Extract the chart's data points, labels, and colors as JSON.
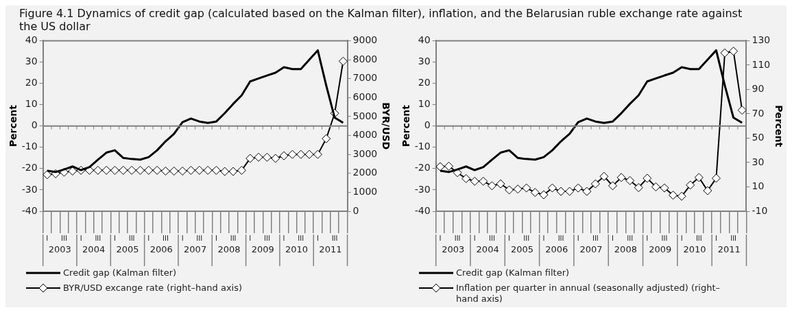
{
  "chart_data": [
    {
      "type": "line",
      "title": "Figure 4.1 Dynamics of credit gap (calculated based on the Kalman filter), inflation, and the Belarusian ruble exchange rate against the US dollar",
      "ylabel": "Percent",
      "y2label": "BYR/USD",
      "categories": [
        "I",
        null,
        "III",
        null,
        "I",
        null,
        "III",
        null,
        "I",
        null,
        "III",
        null,
        "I",
        null,
        "III",
        null,
        "I",
        null,
        "III",
        null,
        "I",
        null,
        "III",
        null,
        "I",
        null,
        "III",
        null,
        "I",
        null,
        "III",
        null,
        "I",
        null,
        "III",
        null
      ],
      "annotations": [
        "2003",
        "2004",
        "2005",
        "2006",
        "2007",
        "2008",
        "2009",
        "2010",
        "2011"
      ],
      "series": [
        {
          "name": "Credit gap (Kalman filter)",
          "color": "#000000",
          "marker": "none",
          "values": [
            -21,
            -21.6,
            -20.4,
            -19,
            -20.7,
            -19.3,
            -15.8,
            -12.5,
            -11.4,
            -15,
            -15.5,
            -15.8,
            -14.6,
            -11.4,
            -7.2,
            -3.7,
            1.8,
            3.5,
            2.1,
            1.4,
            2.1,
            6,
            10.4,
            14.4,
            20.9,
            22.3,
            23.7,
            25,
            27.6,
            26.7,
            26.7,
            31.1,
            35.5,
            19,
            3.9,
            1.5
          ]
        },
        {
          "name": "BYR/USD excange rate (right–hand axis)",
          "color": "#000000",
          "marker": "diamond",
          "axis": "y2",
          "values": [
            1930,
            1980,
            2060,
            2120,
            2160,
            2160,
            2160,
            2160,
            2160,
            2160,
            2160,
            2160,
            2160,
            2160,
            2120,
            2120,
            2120,
            2160,
            2160,
            2160,
            2160,
            2100,
            2100,
            2160,
            2790,
            2850,
            2850,
            2790,
            2930,
            3000,
            3000,
            3000,
            3000,
            3830,
            5170,
            7920
          ]
        }
      ],
      "ylim": [
        -40,
        40
      ],
      "yticks": [
        -40,
        -30,
        -20,
        -10,
        0,
        10,
        20,
        30,
        40
      ],
      "y2lim": [
        0,
        9000
      ],
      "y2ticks": [
        0,
        1000,
        2000,
        3000,
        4000,
        5000,
        6000,
        7000,
        8000,
        9000
      ],
      "ref_lines": [
        {
          "axis": "y",
          "value": 0,
          "color": "#808080"
        }
      ],
      "grid": false,
      "legend": "bottom"
    },
    {
      "type": "line",
      "ylabel": "Percent",
      "y2label": "Percent",
      "categories": [
        "I",
        null,
        "III",
        null,
        "I",
        null,
        "III",
        null,
        "I",
        null,
        "III",
        null,
        "I",
        null,
        "III",
        null,
        "I",
        null,
        "III",
        null,
        "I",
        null,
        "III",
        null,
        "I",
        null,
        "III",
        null,
        "I",
        null,
        "III",
        null,
        "I",
        null,
        "III",
        null
      ],
      "annotations": [
        "2003",
        "2004",
        "2005",
        "2006",
        "2007",
        "2008",
        "2009",
        "2010",
        "2011"
      ],
      "series": [
        {
          "name": "Credit gap (Kalman filter)",
          "color": "#000000",
          "marker": "none",
          "values": [
            -21,
            -21.6,
            -20.4,
            -19,
            -20.7,
            -19.3,
            -15.8,
            -12.5,
            -11.4,
            -15,
            -15.5,
            -15.8,
            -14.6,
            -11.4,
            -7.2,
            -3.7,
            1.8,
            3.5,
            2.1,
            1.4,
            2.1,
            6,
            10.4,
            14.4,
            20.9,
            22.3,
            23.7,
            25,
            27.6,
            26.7,
            26.7,
            31.1,
            35.5,
            19,
            3.9,
            1.5
          ]
        },
        {
          "name": "Inflation per quarter in annual (seasonally adjusted) (right–hand axis)",
          "color": "#000000",
          "marker": "diamond",
          "axis": "y2",
          "values": [
            26.6,
            27,
            21.7,
            16.8,
            14.6,
            14.6,
            10.9,
            12.5,
            7.5,
            8.2,
            9.1,
            5.4,
            3.5,
            9.1,
            6.3,
            6.3,
            9.1,
            6.3,
            12.5,
            18.6,
            10.9,
            17.7,
            15.2,
            9.4,
            17.1,
            10,
            9.1,
            3.2,
            2.3,
            11.5,
            17.7,
            6.9,
            17.1,
            120,
            121.4,
            73
          ]
        }
      ],
      "ylim": [
        -40,
        40
      ],
      "yticks": [
        -40,
        -30,
        -20,
        -10,
        0,
        10,
        20,
        30,
        40
      ],
      "y2lim": [
        -10,
        130
      ],
      "y2ticks": [
        -10,
        10,
        30,
        50,
        70,
        90,
        110,
        130
      ],
      "ref_lines": [
        {
          "axis": "y",
          "value": 0,
          "color": "#808080"
        }
      ],
      "grid": false,
      "legend": "bottom"
    }
  ]
}
